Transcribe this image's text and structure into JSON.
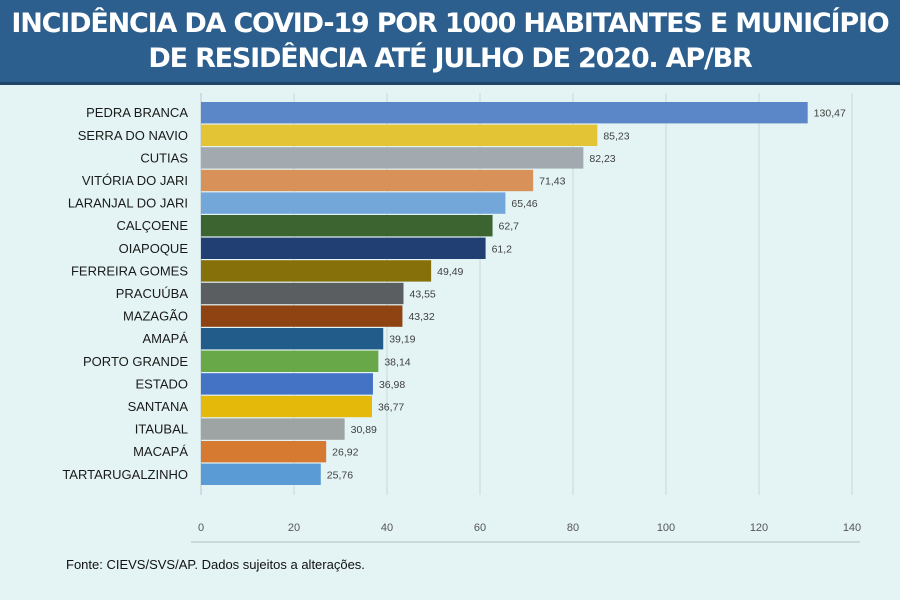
{
  "header": {
    "title_line1": "INCIDÊNCIA DA COVID-19 POR 1000 HABITANTES E MUNICÍPIO",
    "title_line2": "DE RESIDÊNCIA ATÉ JULHO DE 2020. AP/BR"
  },
  "source": "Fonte: CIEVS/SVS/AP. Dados sujeitos a alterações.",
  "chart_data": {
    "type": "bar",
    "orientation": "horizontal",
    "title": "INCIDÊNCIA DA COVID-19 POR 1000 HABITANTES E MUNICÍPIO DE RESIDÊNCIA ATÉ JULHO DE 2020. AP/BR",
    "xlabel": "",
    "ylabel": "",
    "xlim": [
      0,
      140
    ],
    "ticks": [
      0,
      20,
      40,
      60,
      80,
      100,
      120,
      140
    ],
    "grid": true,
    "bars": [
      {
        "label": "PEDRA BRANCA",
        "value": 130.47,
        "value_label": "130,47",
        "color": "#5b87c8"
      },
      {
        "label": "SERRA DO NAVIO",
        "value": 85.23,
        "value_label": "85,23",
        "color": "#e3c435"
      },
      {
        "label": "CUTIAS",
        "value": 82.23,
        "value_label": "82,23",
        "color": "#a2aaaf"
      },
      {
        "label": "VITÓRIA DO JARI",
        "value": 71.43,
        "value_label": "71,43",
        "color": "#d9915a"
      },
      {
        "label": "LARANJAL DO JARI",
        "value": 65.46,
        "value_label": "65,46",
        "color": "#73a6d9"
      },
      {
        "label": "CALÇOENE",
        "value": 62.7,
        "value_label": "62,7",
        "color": "#3c6430"
      },
      {
        "label": "OIAPOQUE",
        "value": 61.2,
        "value_label": "61,2",
        "color": "#213f73"
      },
      {
        "label": "FERREIRA GOMES",
        "value": 49.49,
        "value_label": "49,49",
        "color": "#85700a"
      },
      {
        "label": "PRACUÚBA",
        "value": 43.55,
        "value_label": "43,55",
        "color": "#5b5e60"
      },
      {
        "label": "MAZAGÃO",
        "value": 43.32,
        "value_label": "43,32",
        "color": "#904312"
      },
      {
        "label": "AMAPÁ",
        "value": 39.19,
        "value_label": "39,19",
        "color": "#225c8a"
      },
      {
        "label": "PORTO GRANDE",
        "value": 38.14,
        "value_label": "38,14",
        "color": "#68a848"
      },
      {
        "label": "ESTADO",
        "value": 36.98,
        "value_label": "36,98",
        "color": "#4472c4"
      },
      {
        "label": "SANTANA",
        "value": 36.77,
        "value_label": "36,77",
        "color": "#e5b90a"
      },
      {
        "label": "ITAUBAL",
        "value": 30.89,
        "value_label": "30,89",
        "color": "#9ea4a3"
      },
      {
        "label": "MACAPÁ",
        "value": 26.92,
        "value_label": "26,92",
        "color": "#d67a31"
      },
      {
        "label": "TARTARUGALZINHO",
        "value": 25.76,
        "value_label": "25,76",
        "color": "#5b9bd5"
      }
    ]
  }
}
